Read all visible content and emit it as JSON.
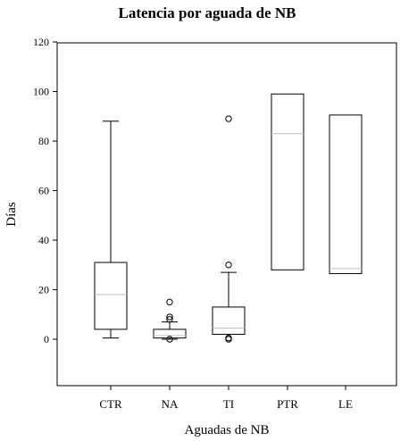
{
  "chart_data": {
    "type": "boxplot",
    "title": "Latencia por aguada de NB",
    "xlabel": "Aguadas de NB",
    "ylabel": "Días",
    "ylim": [
      -20,
      120
    ],
    "yticks": [
      0,
      20,
      40,
      60,
      80,
      100,
      120
    ],
    "grid": false,
    "categories": [
      "CTR",
      "NA",
      "TI",
      "PTR",
      "LE"
    ],
    "boxes": [
      {
        "category": "CTR",
        "whisker_low": 0.5,
        "q1": 4,
        "median": 18,
        "q3": 31,
        "whisker_high": 88,
        "outliers": []
      },
      {
        "category": "NA",
        "whisker_low": 0,
        "q1": 0.5,
        "median": 1.5,
        "q3": 4,
        "whisker_high": 7,
        "outliers": [
          0,
          8,
          9,
          15
        ]
      },
      {
        "category": "TI",
        "whisker_low": 2,
        "q1": 2,
        "median": 4.5,
        "q3": 13,
        "whisker_high": 27,
        "outliers": [
          0,
          0.5,
          30,
          89
        ]
      },
      {
        "category": "PTR",
        "whisker_low": 28,
        "q1": 28,
        "median": 83,
        "q3": 99,
        "whisker_high": 99,
        "outliers": []
      },
      {
        "category": "LE",
        "whisker_low": 26.5,
        "q1": 26.5,
        "median": 28.5,
        "q3": 90.5,
        "whisker_high": 90.5,
        "outliers": []
      }
    ],
    "colors": {
      "median_line": "#c0c0c0",
      "box_stroke": "#000000",
      "axis": "#000000"
    }
  }
}
